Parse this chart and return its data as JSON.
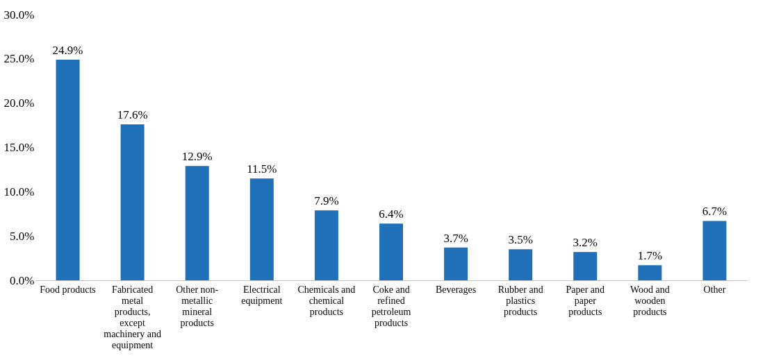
{
  "chart_data": {
    "type": "bar",
    "categories": [
      "Food products",
      "Fabricated metal products, except machinery and equipment",
      "Other non-metallic mineral products",
      "Electrical equipment",
      "Chemicals and chemical products",
      "Coke and refined petroleum products",
      "Beverages",
      "Rubber and plastics products",
      "Paper and paper products",
      "Wood and wooden products",
      "Other"
    ],
    "values": [
      24.9,
      17.6,
      12.9,
      11.5,
      7.9,
      6.4,
      3.7,
      3.5,
      3.2,
      1.7,
      6.7
    ],
    "value_labels": [
      "24.9%",
      "17.6%",
      "12.9%",
      "11.5%",
      "7.9%",
      "6.4%",
      "3.7%",
      "3.5%",
      "3.2%",
      "1.7%",
      "6.7%"
    ],
    "color": "#1f70b8",
    "ylim": [
      0,
      30
    ],
    "yticks": [
      {
        "value": 0,
        "label": "0.0%"
      },
      {
        "value": 5,
        "label": "5.0%"
      },
      {
        "value": 10,
        "label": "10.0%"
      },
      {
        "value": 15,
        "label": "15.0%"
      },
      {
        "value": 20,
        "label": "20.0%"
      },
      {
        "value": 25,
        "label": "25.0%"
      },
      {
        "value": 30,
        "label": "30.0%"
      }
    ],
    "grid": false
  }
}
